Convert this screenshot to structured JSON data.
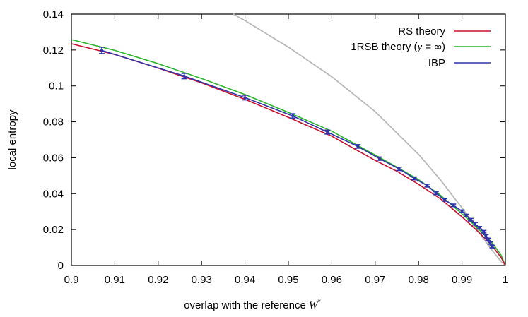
{
  "chart_data": {
    "type": "line",
    "title": "",
    "xlabel": "overlap with the reference W*",
    "ylabel": "local entropy",
    "xlim": [
      0.9,
      1.0
    ],
    "ylim": [
      0,
      0.14
    ],
    "x_ticks": [
      "0.9",
      "0.91",
      "0.92",
      "0.93",
      "0.94",
      "0.95",
      "0.96",
      "0.97",
      "0.98",
      "0.99",
      "1"
    ],
    "y_ticks": [
      "0",
      "0.02",
      "0.04",
      "0.06",
      "0.08",
      "0.1",
      "0.12",
      "0.14"
    ],
    "grid": false,
    "legend_position": "top-right",
    "legend": {
      "rs": "RS theory",
      "rsb_prefix": "1RSB theory (",
      "rsb_var": "y",
      "rsb_eq": " = ∞",
      "rsb_suffix": ")",
      "fbp": "fBP"
    },
    "series": [
      {
        "name": "RS theory",
        "color": "#c8102e",
        "x": [
          0.9,
          0.91,
          0.92,
          0.93,
          0.94,
          0.95,
          0.96,
          0.97,
          0.975,
          0.98,
          0.985,
          0.99,
          0.993,
          0.995,
          0.997,
          0.999,
          1.0
        ],
        "y": [
          0.1235,
          0.1175,
          0.1099,
          0.1017,
          0.0925,
          0.0825,
          0.072,
          0.0585,
          0.0525,
          0.0452,
          0.0372,
          0.0271,
          0.0205,
          0.0158,
          0.0108,
          0.0045,
          0.0
        ]
      },
      {
        "name": "1RSB theory (y = ∞)",
        "color": "#2ab52a",
        "x": [
          0.9,
          0.91,
          0.92,
          0.93,
          0.94,
          0.95,
          0.96,
          0.97,
          0.975,
          0.98,
          0.985,
          0.99,
          0.993,
          0.995,
          0.997,
          0.999,
          1.0
        ],
        "y": [
          0.1258,
          0.1198,
          0.1124,
          0.1041,
          0.0952,
          0.0852,
          0.0748,
          0.0615,
          0.0548,
          0.0478,
          0.0392,
          0.0288,
          0.0222,
          0.0175,
          0.0125,
          0.0058,
          0.0
        ]
      },
      {
        "name": "fBP",
        "color": "#2f35a8",
        "x": [
          0.907,
          0.926,
          0.94,
          0.951,
          0.959,
          0.966,
          0.971,
          0.9755,
          0.979,
          0.982,
          0.984,
          0.986,
          0.988,
          0.99,
          0.991,
          0.992,
          0.993,
          0.994,
          0.995,
          0.9955,
          0.996,
          0.9965,
          0.997
        ],
        "y": [
          0.1198,
          0.1055,
          0.0935,
          0.0833,
          0.0743,
          0.0663,
          0.0595,
          0.0538,
          0.0485,
          0.0445,
          0.0403,
          0.0365,
          0.0335,
          0.0302,
          0.0278,
          0.0255,
          0.0232,
          0.021,
          0.0188,
          0.0165,
          0.0145,
          0.0125,
          0.0105
        ],
        "errors": [
          0.0018,
          0.0015,
          0.0013,
          0.0012,
          0.0011,
          0.001,
          0.0009,
          0.0009,
          0.0008,
          0.0008,
          0.0008,
          0.0007,
          0.0007,
          0.0007,
          0.0007,
          0.0007,
          0.0007,
          0.0007,
          0.0007,
          0.0007,
          0.0007,
          0.0007,
          0.0007
        ]
      },
      {
        "name": "",
        "color": "#b8b8b8",
        "x": [
          0.9373,
          0.94,
          0.95,
          0.96,
          0.97,
          0.98,
          0.985,
          0.99,
          0.993,
          0.995,
          0.997,
          0.999,
          1.0
        ],
        "y": [
          0.14,
          0.1364,
          0.1216,
          0.1051,
          0.0857,
          0.0619,
          0.0478,
          0.0321,
          0.0219,
          0.0148,
          0.0082,
          0.0023,
          0.0
        ]
      }
    ]
  }
}
